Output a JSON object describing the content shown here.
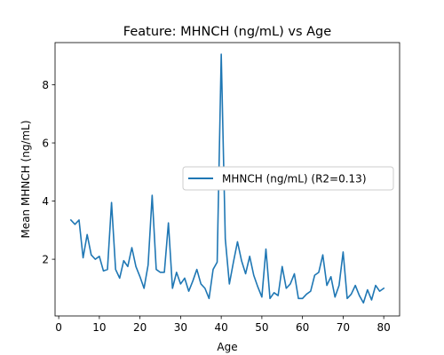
{
  "chart_data": {
    "type": "line",
    "title": "Feature: MHNCH (ng/mL) vs Age",
    "xlabel": "Age",
    "ylabel": "Mean MHNCH (ng/mL)",
    "xlim": [
      -0.9,
      83.9
    ],
    "ylim": [
      0.05,
      9.45
    ],
    "xticks": [
      0,
      10,
      20,
      30,
      40,
      50,
      60,
      70,
      80
    ],
    "yticks": [
      2,
      4,
      6,
      8
    ],
    "grid": false,
    "legend_position": "center-right",
    "series": [
      {
        "name": "MHNCH (ng/mL) (R2=0.13)",
        "color": "#1f77b4",
        "x": [
          3,
          4,
          5,
          6,
          7,
          8,
          9,
          10,
          11,
          12,
          13,
          14,
          15,
          16,
          17,
          18,
          19,
          20,
          21,
          22,
          23,
          24,
          25,
          26,
          27,
          28,
          29,
          30,
          31,
          32,
          33,
          34,
          35,
          36,
          37,
          38,
          39,
          40,
          41,
          42,
          43,
          44,
          45,
          46,
          47,
          48,
          49,
          50,
          51,
          52,
          53,
          54,
          55,
          56,
          57,
          58,
          59,
          60,
          61,
          62,
          63,
          64,
          65,
          66,
          67,
          68,
          69,
          70,
          71,
          72,
          73,
          74,
          75,
          76,
          77,
          78,
          79,
          80
        ],
        "y": [
          3.35,
          3.2,
          3.35,
          2.05,
          2.85,
          2.15,
          2.0,
          2.1,
          1.6,
          1.65,
          3.95,
          1.65,
          1.35,
          1.95,
          1.75,
          2.4,
          1.75,
          1.4,
          1.0,
          1.8,
          4.2,
          1.65,
          1.55,
          1.55,
          3.25,
          1.0,
          1.55,
          1.15,
          1.35,
          0.9,
          1.25,
          1.65,
          1.15,
          1.0,
          0.65,
          1.65,
          1.9,
          9.05,
          2.7,
          1.15,
          1.9,
          2.6,
          1.95,
          1.5,
          2.1,
          1.45,
          1.05,
          0.7,
          2.35,
          0.65,
          0.85,
          0.75,
          1.75,
          1.0,
          1.15,
          1.5,
          0.65,
          0.65,
          0.8,
          0.9,
          1.45,
          1.55,
          2.15,
          1.1,
          1.4,
          0.7,
          1.1,
          2.25,
          0.65,
          0.8,
          1.1,
          0.75,
          0.5,
          0.95,
          0.6,
          1.1,
          0.9,
          1.0
        ]
      }
    ]
  }
}
